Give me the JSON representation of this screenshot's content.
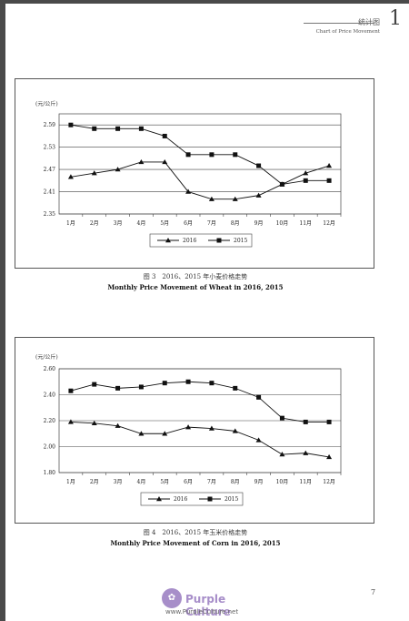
{
  "header": {
    "section_zh": "统计图",
    "section_en": "Chart of Price Movement",
    "chapter": "1"
  },
  "page_number": "7",
  "watermark": {
    "brand": "Purple Culture",
    "url": "www.PurpleCulture.net"
  },
  "chart_data": [
    {
      "type": "line",
      "unit": "(元/公斤)",
      "categories": [
        "1月",
        "2月",
        "3月",
        "4月",
        "5月",
        "6月",
        "7月",
        "8月",
        "9月",
        "10月",
        "11月",
        "12月"
      ],
      "yticks": [
        "2.35",
        "2.41",
        "2.47",
        "2.53",
        "2.59"
      ],
      "ylim": [
        2.35,
        2.62
      ],
      "grid": true,
      "legend_position": "bottom",
      "series": [
        {
          "name": "2016",
          "marker": "triangle",
          "values": [
            2.45,
            2.46,
            2.47,
            2.49,
            2.49,
            2.41,
            2.39,
            2.39,
            2.4,
            2.43,
            2.46,
            2.48
          ]
        },
        {
          "name": "2015",
          "marker": "square",
          "values": [
            2.59,
            2.58,
            2.58,
            2.58,
            2.56,
            2.51,
            2.51,
            2.51,
            2.48,
            2.43,
            2.44,
            2.44
          ]
        }
      ],
      "caption_zh": "图 3　2016、2015 年小麦价格走势",
      "caption_en": "Monthly Price Movement of Wheat in 2016, 2015"
    },
    {
      "type": "line",
      "unit": "(元/公斤)",
      "categories": [
        "1月",
        "2月",
        "3月",
        "4月",
        "5月",
        "6月",
        "7月",
        "8月",
        "9月",
        "10月",
        "11月",
        "12月"
      ],
      "yticks": [
        "1.80",
        "2.00",
        "2.20",
        "2.40",
        "2.60"
      ],
      "ylim": [
        1.8,
        2.6
      ],
      "grid": true,
      "legend_position": "bottom",
      "series": [
        {
          "name": "2016",
          "marker": "triangle",
          "values": [
            2.19,
            2.18,
            2.16,
            2.1,
            2.1,
            2.15,
            2.14,
            2.12,
            2.05,
            1.94,
            1.95,
            1.92
          ]
        },
        {
          "name": "2015",
          "marker": "square",
          "values": [
            2.43,
            2.48,
            2.45,
            2.46,
            2.49,
            2.5,
            2.49,
            2.45,
            2.38,
            2.22,
            2.19,
            2.19
          ]
        }
      ],
      "caption_zh": "图 4　2016、2015 年玉米价格走势",
      "caption_en": "Monthly Price Movement of Corn in 2016, 2015"
    }
  ]
}
